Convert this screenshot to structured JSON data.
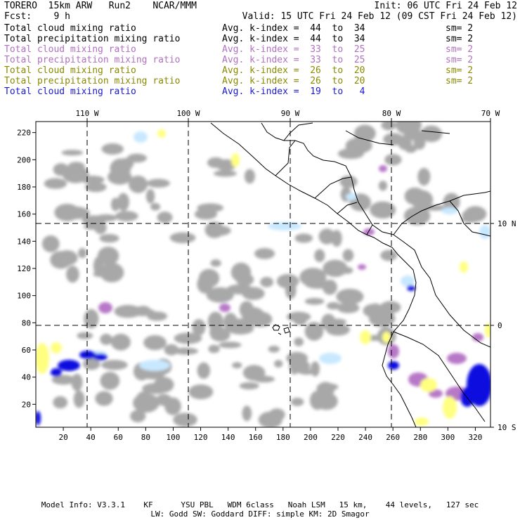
{
  "header": {
    "line1_left": "TORERO  15km ARW   Run2    NCAR/MMM",
    "line1_right": "Init: 06 UTC Fri 24 Feb 12",
    "line2_left": "Fcst:    9 h",
    "line2_right": "Valid: 15 UTC Fri 24 Feb 12 (09 CST Fri 24 Feb 12)"
  },
  "legend": [
    {
      "field": "Total cloud mixing ratio",
      "kindex": "Avg. k-index =  44  to  34",
      "sm": "sm= 2",
      "color": "#000000"
    },
    {
      "field": "Total precipitation mixing ratio",
      "kindex": "Avg. k-index =  44  to  34",
      "sm": "sm= 2",
      "color": "#000000"
    },
    {
      "field": "Total cloud mixing ratio",
      "kindex": "Avg. k-index =  33  to  25",
      "sm": "sm= 2",
      "color": "#b070c0"
    },
    {
      "field": "Total precipitation mixing ratio",
      "kindex": "Avg. k-index =  33  to  25",
      "sm": "sm= 2",
      "color": "#b070c0"
    },
    {
      "field": "Total cloud mixing ratio",
      "kindex": "Avg. k-index =  26  to  20",
      "sm": "sm= 2",
      "color": "#8a8a00"
    },
    {
      "field": "Total precipitation mixing ratio",
      "kindex": "Avg. k-index =  26  to  20",
      "sm": "sm= 2",
      "color": "#8a8a00"
    },
    {
      "field": "Total cloud mixing ratio",
      "kindex": "Avg. k-index =  19  to   4",
      "sm": "",
      "color": "#1a1ad0"
    }
  ],
  "map": {
    "lon_labels": [
      "110 W",
      "100 W",
      "90 W",
      "80 W",
      "70 W"
    ],
    "lat_labels": [
      "10 N",
      "0",
      "10 S"
    ],
    "x_ticks": [
      "20",
      "40",
      "60",
      "80",
      "100",
      "120",
      "140",
      "160",
      "180",
      "200",
      "220",
      "240",
      "260",
      "280",
      "300",
      "320"
    ],
    "y_ticks": [
      "20",
      "40",
      "60",
      "80",
      "100",
      "120",
      "140",
      "160",
      "180",
      "200",
      "220"
    ],
    "colors": {
      "cloud": "#a8a8a8",
      "purple": "#b878c8",
      "yellow": "#ffff80",
      "lightblue": "#c8e8ff",
      "blue": "#1010e0",
      "coast": "#000000"
    }
  },
  "footer": {
    "line1": "Model Info: V3.3.1    KF      YSU PBL   WDM 6class   Noah LSM   15 km,    44 levels,   127 sec",
    "line2": "LW: Godd SW: Goddard DIFF: simple KM: 2D Smagor"
  }
}
